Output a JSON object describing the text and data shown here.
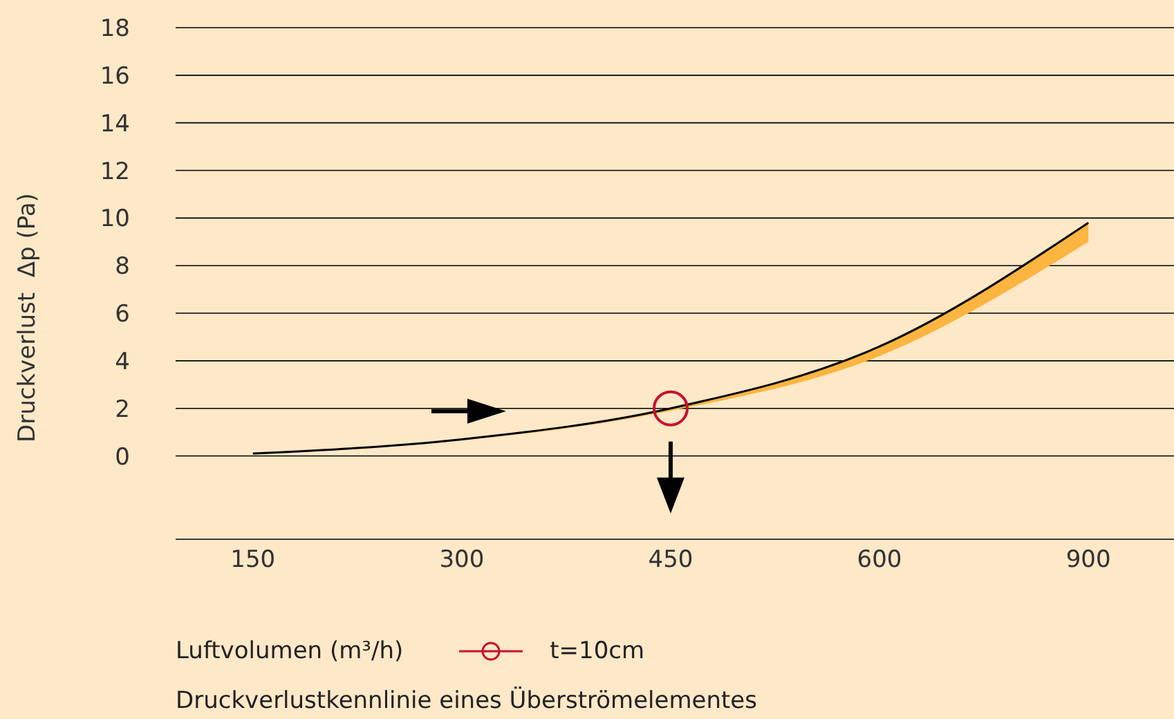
{
  "chart_data": {
    "type": "line",
    "xlabel": "Luftvolumen (m³/h)",
    "ylabel": "Druckverlust  Δp (Pa)",
    "categories": [
      "150",
      "300",
      "450",
      "600",
      "900"
    ],
    "series": [
      {
        "name": "t=10cm",
        "color": "#000000",
        "values": [
          0.1,
          0.7,
          2.0,
          4.6,
          9.8
        ],
        "lower": [
          0.1,
          0.65,
          1.9,
          4.2,
          9.0
        ],
        "upper": [
          0.1,
          0.7,
          2.0,
          4.6,
          9.8
        ]
      }
    ],
    "ylim": [
      -3.5,
      18
    ],
    "yticks": [
      0,
      2,
      4,
      6,
      8,
      10,
      12,
      14,
      16,
      18
    ],
    "grid": "y",
    "legend": "bottom",
    "marker": "none",
    "annotations": [
      "Druckverlustkennlinie eines Überströmelementes"
    ]
  }
}
